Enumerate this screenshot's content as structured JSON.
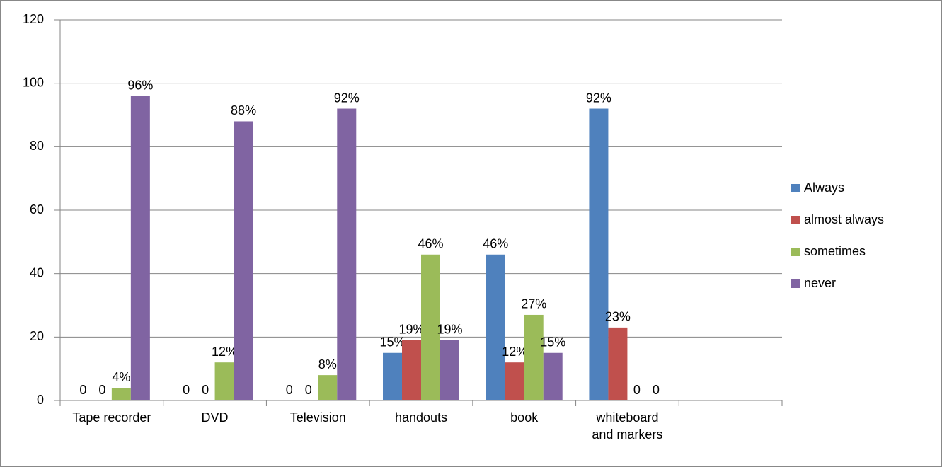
{
  "chart_data": {
    "type": "bar",
    "categories": [
      "Tape recorder",
      "DVD",
      "Television",
      "handouts",
      "book",
      "whiteboard and markers",
      null
    ],
    "series": [
      {
        "name": "Always",
        "color": "#4f81bd",
        "values": [
          0,
          0,
          0,
          15,
          46,
          92,
          null
        ],
        "value_labels": [
          "0",
          "0",
          "0",
          "15%",
          "46%",
          "92%",
          null
        ]
      },
      {
        "name": "almost always",
        "color": "#c0504d",
        "values": [
          0,
          0,
          0,
          19,
          12,
          23,
          null
        ],
        "value_labels": [
          "0",
          "0",
          "0",
          "19%",
          "12%",
          "23%",
          null
        ]
      },
      {
        "name": "sometimes",
        "color": "#9bbb59",
        "values": [
          4,
          12,
          8,
          46,
          27,
          0,
          null
        ],
        "value_labels": [
          "4%",
          "12%",
          "8%",
          "46%",
          "27%",
          "0",
          null
        ]
      },
      {
        "name": "never",
        "color": "#8064a2",
        "values": [
          96,
          88,
          92,
          19,
          15,
          0,
          null
        ],
        "value_labels": [
          "96%",
          "88%",
          "92%",
          "19%",
          "15%",
          "0",
          null
        ]
      }
    ],
    "ylim": [
      0,
      120
    ],
    "yticks": [
      0,
      20,
      40,
      60,
      80,
      100,
      120
    ],
    "grid": true,
    "legend": "right"
  }
}
